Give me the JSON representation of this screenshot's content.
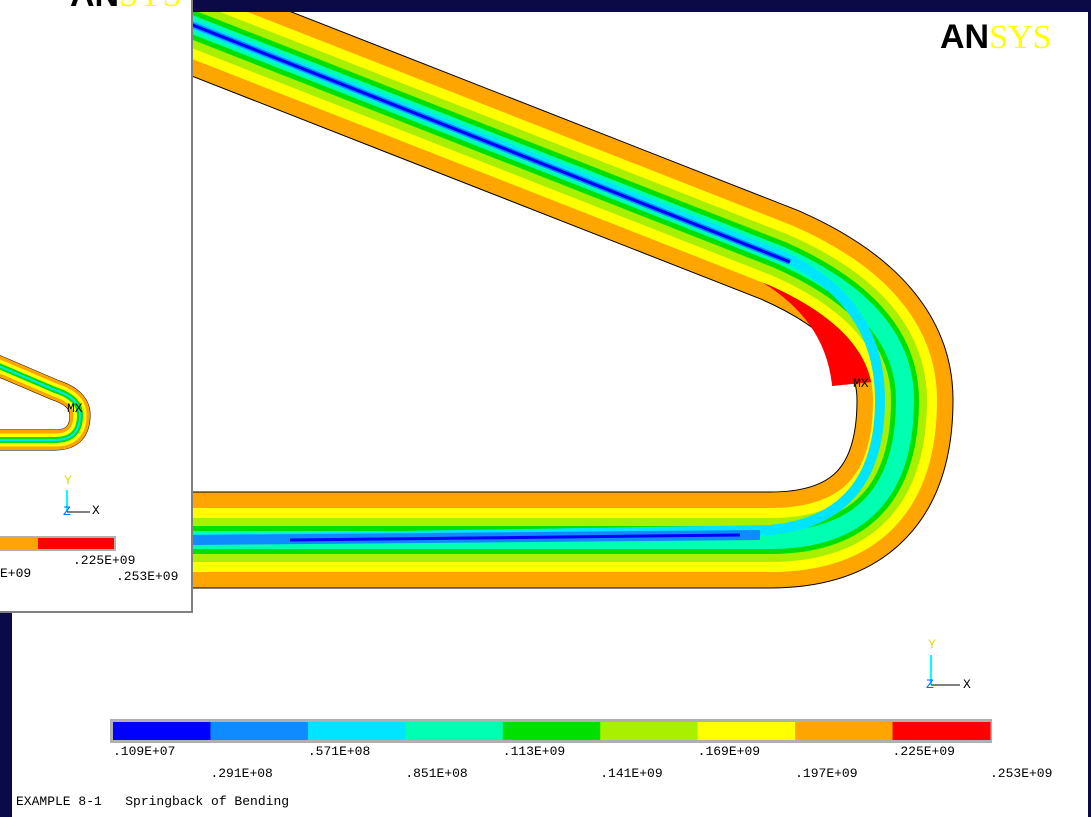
{
  "main": {
    "logo_an": "AN",
    "logo_sys": "SYS",
    "max_label": "MX",
    "triad": {
      "y": "Y",
      "z": "Z",
      "x": "X"
    },
    "legend": {
      "colors": [
        "#0000ff",
        "#0f8aff",
        "#00e5ff",
        "#00ffb0",
        "#00e000",
        "#a8f000",
        "#ffff00",
        "#ffa500",
        "#ff0000"
      ],
      "labels": [
        ".109E+07",
        ".291E+08",
        ".571E+08",
        ".851E+08",
        ".113E+09",
        ".141E+09",
        ".169E+09",
        ".197E+09",
        ".225E+09",
        ".253E+09"
      ]
    },
    "caption": "EXAMPLE 8-1   Springback of Bending"
  },
  "inset": {
    "logo_an": "AN",
    "logo_sys": "SYS",
    "max_label": "MX",
    "triad": {
      "y": "Y",
      "z": "Z",
      "x": "X"
    },
    "legend_labels": [
      "E+09",
      ".225E+09",
      ".253E+09"
    ]
  }
}
